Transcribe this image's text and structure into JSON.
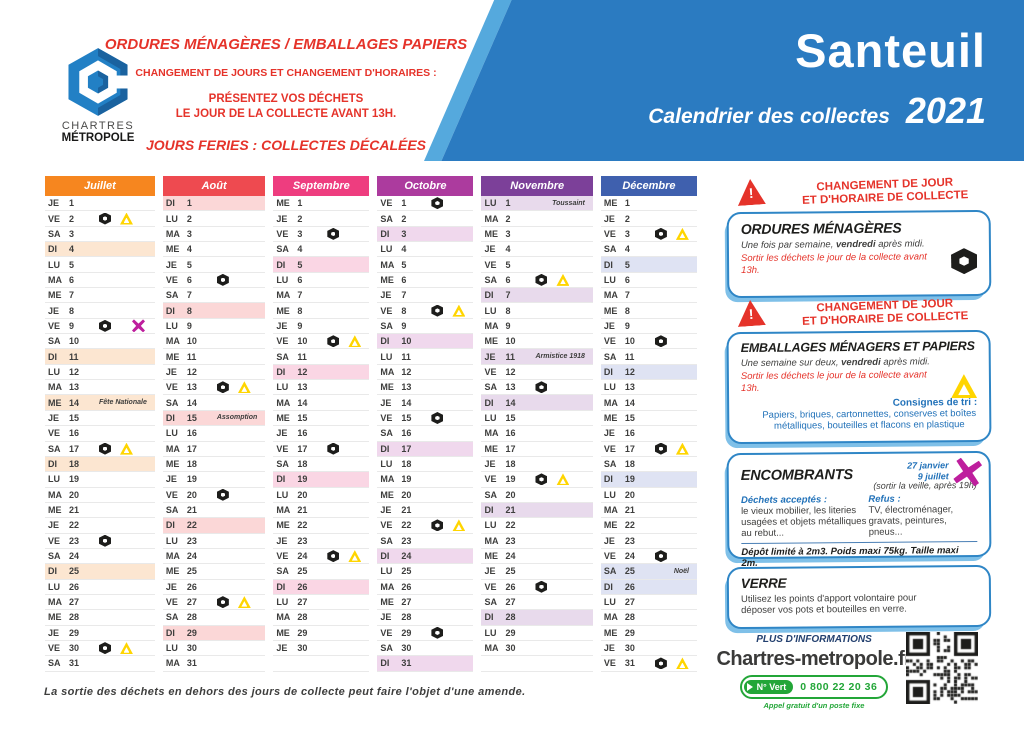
{
  "header": {
    "logo": {
      "line1": "CHARTRES",
      "line2": "MÉTROPOLE"
    },
    "red_lines": {
      "l1": "ORDURES MÉNAGÈRES / EMBALLAGES PAPIERS",
      "l2": "CHANGEMENT DE JOURS ET CHANGEMENT D'HORAIRES :",
      "l3a": "PRÉSENTEZ VOS DÉCHETS",
      "l3b": "LE JOUR DE LA COLLECTE AVANT 13H.",
      "l4": "JOURS FERIES : COLLECTES DÉCALÉES"
    },
    "banner": {
      "city": "Santeuil",
      "subtitle": "Calendrier des collectes",
      "year": "2021"
    }
  },
  "colors": {
    "banner_blue": "#2b7bc1",
    "banner_stripe": "#55a9dd",
    "alert_red": "#e5332a",
    "panel_border_blue": "#2f86c6",
    "panel_text_blue": "#2272b9",
    "green": "#23a638",
    "ordures_black": "#1d1d1b",
    "emballages_yellow": "#ffd500",
    "encombrants_magenta": "#be1e9d"
  },
  "calendar": {
    "day_abbrevs": [
      "LU",
      "MA",
      "ME",
      "JE",
      "VE",
      "SA",
      "DI"
    ],
    "months": [
      {
        "name": "Juillet",
        "color": "#f6861f",
        "hl": "#fce6d1",
        "days": [
          [
            "JE",
            1
          ],
          [
            "VE",
            2,
            "om emb"
          ],
          [
            "SA",
            3
          ],
          [
            "DI",
            4,
            "",
            1
          ],
          [
            "LU",
            5
          ],
          [
            "MA",
            6
          ],
          [
            "ME",
            7
          ],
          [
            "JE",
            8
          ],
          [
            "VE",
            9,
            "om enc"
          ],
          [
            "SA",
            10
          ],
          [
            "DI",
            11,
            "",
            1
          ],
          [
            "LU",
            12
          ],
          [
            "MA",
            13
          ],
          [
            "ME",
            14,
            "",
            1,
            "Fête Nationale"
          ],
          [
            "JE",
            15
          ],
          [
            "VE",
            16
          ],
          [
            "SA",
            17,
            "om emb"
          ],
          [
            "DI",
            18,
            "",
            1
          ],
          [
            "LU",
            19
          ],
          [
            "MA",
            20
          ],
          [
            "ME",
            21
          ],
          [
            "JE",
            22
          ],
          [
            "VE",
            23,
            "om"
          ],
          [
            "SA",
            24
          ],
          [
            "DI",
            25,
            "",
            1
          ],
          [
            "LU",
            26
          ],
          [
            "MA",
            27
          ],
          [
            "ME",
            28
          ],
          [
            "JE",
            29
          ],
          [
            "VE",
            30,
            "om emb"
          ],
          [
            "SA",
            31
          ]
        ]
      },
      {
        "name": "Août",
        "color": "#ee4a50",
        "hl": "#fbd7d7",
        "days": [
          [
            "DI",
            1,
            "",
            1
          ],
          [
            "LU",
            2
          ],
          [
            "MA",
            3
          ],
          [
            "ME",
            4
          ],
          [
            "JE",
            5
          ],
          [
            "VE",
            6,
            "om"
          ],
          [
            "SA",
            7
          ],
          [
            "DI",
            8,
            "",
            1
          ],
          [
            "LU",
            9
          ],
          [
            "MA",
            10
          ],
          [
            "ME",
            11
          ],
          [
            "JE",
            12
          ],
          [
            "VE",
            13,
            "om emb"
          ],
          [
            "SA",
            14
          ],
          [
            "DI",
            15,
            "",
            1,
            "Assomption"
          ],
          [
            "LU",
            16
          ],
          [
            "MA",
            17
          ],
          [
            "ME",
            18
          ],
          [
            "JE",
            19
          ],
          [
            "VE",
            20,
            "om"
          ],
          [
            "SA",
            21
          ],
          [
            "DI",
            22,
            "",
            1
          ],
          [
            "LU",
            23
          ],
          [
            "MA",
            24
          ],
          [
            "ME",
            25
          ],
          [
            "JE",
            26
          ],
          [
            "VE",
            27,
            "om emb"
          ],
          [
            "SA",
            28
          ],
          [
            "DI",
            29,
            "",
            1
          ],
          [
            "LU",
            30
          ],
          [
            "MA",
            31
          ]
        ]
      },
      {
        "name": "Septembre",
        "color": "#ee3d7f",
        "hl": "#fad6e4",
        "days": [
          [
            "ME",
            1
          ],
          [
            "JE",
            2
          ],
          [
            "VE",
            3,
            "om"
          ],
          [
            "SA",
            4
          ],
          [
            "DI",
            5,
            "",
            1
          ],
          [
            "LU",
            6
          ],
          [
            "MA",
            7
          ],
          [
            "ME",
            8
          ],
          [
            "JE",
            9
          ],
          [
            "VE",
            10,
            "om emb"
          ],
          [
            "SA",
            11
          ],
          [
            "DI",
            12,
            "",
            1
          ],
          [
            "LU",
            13
          ],
          [
            "MA",
            14
          ],
          [
            "ME",
            15
          ],
          [
            "JE",
            16
          ],
          [
            "VE",
            17,
            "om"
          ],
          [
            "SA",
            18
          ],
          [
            "DI",
            19,
            "",
            1
          ],
          [
            "LU",
            20
          ],
          [
            "MA",
            21
          ],
          [
            "ME",
            22
          ],
          [
            "JE",
            23
          ],
          [
            "VE",
            24,
            "om emb"
          ],
          [
            "SA",
            25
          ],
          [
            "DI",
            26,
            "",
            1
          ],
          [
            "LU",
            27
          ],
          [
            "MA",
            28
          ],
          [
            "ME",
            29
          ],
          [
            "JE",
            30
          ]
        ]
      },
      {
        "name": "Octobre",
        "color": "#ac3b9e",
        "hl": "#f0d8ed",
        "days": [
          [
            "VE",
            1,
            "om"
          ],
          [
            "SA",
            2
          ],
          [
            "DI",
            3,
            "",
            1
          ],
          [
            "LU",
            4
          ],
          [
            "MA",
            5
          ],
          [
            "ME",
            6
          ],
          [
            "JE",
            7
          ],
          [
            "VE",
            8,
            "om emb"
          ],
          [
            "SA",
            9
          ],
          [
            "DI",
            10,
            "",
            1
          ],
          [
            "LU",
            11
          ],
          [
            "MA",
            12
          ],
          [
            "ME",
            13
          ],
          [
            "JE",
            14
          ],
          [
            "VE",
            15,
            "om"
          ],
          [
            "SA",
            16
          ],
          [
            "DI",
            17,
            "",
            1
          ],
          [
            "LU",
            18
          ],
          [
            "MA",
            19
          ],
          [
            "ME",
            20
          ],
          [
            "JE",
            21
          ],
          [
            "VE",
            22,
            "om emb"
          ],
          [
            "SA",
            23
          ],
          [
            "DI",
            24,
            "",
            1
          ],
          [
            "LU",
            25
          ],
          [
            "MA",
            26
          ],
          [
            "ME",
            27
          ],
          [
            "JE",
            28
          ],
          [
            "VE",
            29,
            "om"
          ],
          [
            "SA",
            30
          ],
          [
            "DI",
            31,
            "",
            1
          ]
        ]
      },
      {
        "name": "Novembre",
        "color": "#7c4099",
        "hl": "#e8daec",
        "days": [
          [
            "LU",
            1,
            "",
            1,
            "Toussaint"
          ],
          [
            "MA",
            2
          ],
          [
            "ME",
            3
          ],
          [
            "JE",
            4
          ],
          [
            "VE",
            5
          ],
          [
            "SA",
            6,
            "om emb"
          ],
          [
            "DI",
            7,
            "",
            1
          ],
          [
            "LU",
            8
          ],
          [
            "MA",
            9
          ],
          [
            "ME",
            10
          ],
          [
            "JE",
            11,
            "",
            1,
            "Armistice 1918"
          ],
          [
            "VE",
            12
          ],
          [
            "SA",
            13,
            "om"
          ],
          [
            "DI",
            14,
            "",
            1
          ],
          [
            "LU",
            15
          ],
          [
            "MA",
            16
          ],
          [
            "ME",
            17
          ],
          [
            "JE",
            18
          ],
          [
            "VE",
            19,
            "om emb"
          ],
          [
            "SA",
            20
          ],
          [
            "DI",
            21,
            "",
            1
          ],
          [
            "LU",
            22
          ],
          [
            "MA",
            23
          ],
          [
            "ME",
            24
          ],
          [
            "JE",
            25
          ],
          [
            "VE",
            26,
            "om"
          ],
          [
            "SA",
            27
          ],
          [
            "DI",
            28,
            "",
            1
          ],
          [
            "LU",
            29
          ],
          [
            "MA",
            30
          ]
        ]
      },
      {
        "name": "Décembre",
        "color": "#3f60ae",
        "hl": "#dfe3f3",
        "days": [
          [
            "ME",
            1
          ],
          [
            "JE",
            2
          ],
          [
            "VE",
            3,
            "om emb"
          ],
          [
            "SA",
            4
          ],
          [
            "DI",
            5,
            "",
            1
          ],
          [
            "LU",
            6
          ],
          [
            "MA",
            7
          ],
          [
            "ME",
            8
          ],
          [
            "JE",
            9
          ],
          [
            "VE",
            10,
            "om"
          ],
          [
            "SA",
            11
          ],
          [
            "DI",
            12,
            "",
            1
          ],
          [
            "LU",
            13
          ],
          [
            "MA",
            14
          ],
          [
            "ME",
            15
          ],
          [
            "JE",
            16
          ],
          [
            "VE",
            17,
            "om emb"
          ],
          [
            "SA",
            18
          ],
          [
            "DI",
            19,
            "",
            1
          ],
          [
            "LU",
            20
          ],
          [
            "MA",
            21
          ],
          [
            "ME",
            22
          ],
          [
            "JE",
            23
          ],
          [
            "VE",
            24,
            "om"
          ],
          [
            "SA",
            25,
            "",
            1,
            "Noël"
          ],
          [
            "DI",
            26,
            "",
            1
          ],
          [
            "LU",
            27
          ],
          [
            "MA",
            28
          ],
          [
            "ME",
            29
          ],
          [
            "JE",
            30
          ],
          [
            "VE",
            31,
            "om emb"
          ]
        ]
      }
    ]
  },
  "panels": {
    "warning": {
      "line1": "CHANGEMENT DE JOUR",
      "line2": "ET D'HORAIRE DE COLLECTE"
    },
    "ordures": {
      "title": "ORDURES MÉNAGÈRES",
      "freq_pre": "Une fois par semaine, ",
      "freq_day": "vendredi",
      "freq_post": " après midi.",
      "alert": "Sortir les déchets le jour de la collecte avant 13h."
    },
    "emballages": {
      "title": "EMBALLAGES MÉNAGERS ET PAPIERS",
      "freq_pre": "Une semaine sur deux, ",
      "freq_day": "vendredi",
      "freq_post": " après midi.",
      "alert": "Sortir les déchets le jour de la collecte avant 13h.",
      "consignes_title": "Consignes de tri :",
      "consignes": "Papiers, briques, cartonnettes, conserves et boîtes métalliques, bouteilles et flacons en plastique"
    },
    "encombrants": {
      "title": "ENCOMBRANTS",
      "date1": "27 janvier",
      "date2": "9 juillet",
      "sortir": "(sortir la veille, après 19h)",
      "accept_title": "Déchets acceptés :",
      "accept": "le vieux mobilier, les literies usagées et objets métalliques au rebut...",
      "refus_title": "Refus :",
      "refus": "TV, électroménager, gravats, peintures, pneus...",
      "limite": "Dépôt limité à 2m3. Poids maxi 75kg. Taille maxi 2m."
    },
    "verre": {
      "title": "VERRE",
      "text": "Utilisez les points d'apport volontaire pour déposer vos pots et bouteilles en verre."
    },
    "info": {
      "label": "PLUS D'INFORMATIONS",
      "site": "Chartres-metropole.fr",
      "numvert_label": "N° Vert",
      "numvert_number": "0 800 22 20 36",
      "numvert_note": "Appel gratuit d'un poste fixe"
    }
  },
  "footer": {
    "note": "La sortie des déchets en dehors des jours de collecte peut faire l'objet d'une amende."
  }
}
